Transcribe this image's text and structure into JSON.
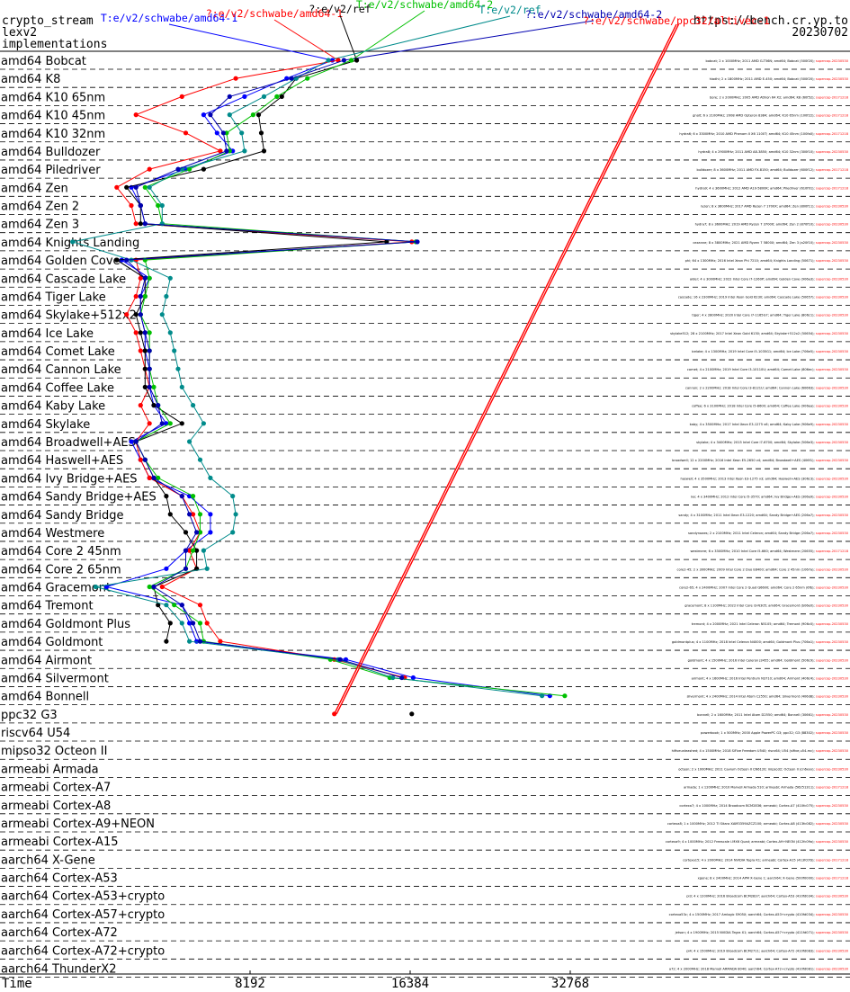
{
  "header": {
    "line1": "crypto_stream",
    "line2": "lexv2",
    "line3": "implementations",
    "url": "https://bench.cr.yp.to",
    "date": "20230702"
  },
  "colors": {
    "schwabe_amd64_1": "#0000ff",
    "v2_schwabe_amd64_1": "#ff0000",
    "ref": "#000000",
    "schwabe_amd64_2": "#00c000",
    "e_ref": "#008b8b",
    "e_schwabe_amd64_2": "#0000b0",
    "ppc_altivec": "#ff0000",
    "note": "#ff0000"
  },
  "chart_data": {
    "type": "line",
    "title": "",
    "xlabel": "Time",
    "ylabel": "",
    "x_scale": "log2",
    "x_ticks": [
      8192,
      16384,
      32768
    ],
    "xlim": [
      3800,
      60000
    ],
    "categories": [
      "amd64 Bobcat",
      "amd64 K8",
      "amd64 K10 65nm",
      "amd64 K10 45nm",
      "amd64 K10 32nm",
      "amd64 Bulldozer",
      "amd64 Piledriver",
      "amd64 Zen",
      "amd64 Zen 2",
      "amd64 Zen 3",
      "amd64 Knights Landing",
      "amd64 Golden Cove",
      "amd64 Cascade Lake",
      "amd64 Tiger Lake",
      "amd64 Skylake+512x2",
      "amd64 Ice Lake",
      "amd64 Comet Lake",
      "amd64 Cannon Lake",
      "amd64 Coffee Lake",
      "amd64 Kaby Lake",
      "amd64 Skylake",
      "amd64 Broadwell+AES",
      "amd64 Haswell+AES",
      "amd64 Ivy Bridge+AES",
      "amd64 Sandy Bridge+AES",
      "amd64 Sandy Bridge",
      "amd64 Westmere",
      "amd64 Core 2 45nm",
      "amd64 Core 2 65nm",
      "amd64 Gracemont",
      "amd64 Tremont",
      "amd64 Goldmont Plus",
      "amd64 Goldmont",
      "amd64 Airmont",
      "amd64 Silvermont",
      "amd64 Bonnell",
      "ppc32 G3",
      "riscv64 U54",
      "mipso32 Octeon II",
      "armeabi Armada",
      "armeabi Cortex-A7",
      "armeabi Cortex-A8",
      "armeabi Cortex-A9+NEON",
      "armeabi Cortex-A15",
      "aarch64 X-Gene",
      "aarch64 Cortex-A53",
      "aarch64 Cortex-A53+crypto",
      "aarch64 Cortex-A57+crypto",
      "aarch64 Cortex-A72",
      "aarch64 Cortex-A72+crypto",
      "aarch64 ThunderX2"
    ],
    "machines": [
      "bobcat; 2 x 1000MHz; 2011 AMD G-T56N; amd64; Bobcat (500f20); supercop-20230530",
      "hiadhi; 2 x 1800MHz; 2011 AMD E-450; amd64; Bobcat (500f20); supercop-20230530",
      "bore; 2 x 2000MHz; 2005 AMD Athlon 64 X2; amd64; K8 (60f52); supercop-20171218",
      "gnolt; 6 x 2100MHz; 2008 AMD Opteron 8384; amd64; K10 65nm (100f22); supercop-20171218",
      "hydra6; 6 x 3300MHz; 2010 AMD Phenom II X6 1100T; amd64; K10 45nm (100fa0); supercop-20171218",
      "hydra8; 4 x 2900MHz; 2011 AMD A8-3850; amd64; K10 32nm (300f10); supercop-20230530",
      "bulldozer; 8 x 3600MHz; 2011 AMD FX-8150; amd64; Bulldozer (600f12); supercop-20171218",
      "hydra9; 4 x 3600MHz; 2012 AMD A10-5800K; amd64; Piledriver (610f01); supercop-20171218",
      "ryzen; 8 x 3600MHz; 2017 AMD Ryzen 7 1700X; amd64; Zen (800f11); supercop-20230530",
      "hydra7; 8 x 3600MHz; 2019 AMD Ryzen 7 3700X; amd64; Zen 2 (870f10); supercop-20230530",
      "cezanne; 8 x 3800MHz; 2021 AMD Ryzen 7 5800X; amd64; Zen 3 (a20f10); supercop-20230530",
      "phi; 64 x 1300MHz; 2016 Intel Xeon Phi 7210; amd64; Knights Landing (50671); supercop-20230530",
      "alder; 4 x 3000MHz; 2022 Intel Core i7-1260P; amd64; Golden Cove (906a3); supercop-20230530",
      "cascade; 16 x 2300MHz; 2019 Intel Xeon Gold 6230; amd64; Cascade Lake (50657); supercop-20230530",
      "tiger; 4 x 2800MHz; 2020 Intel Core i7-1165G7; amd64; Tiger Lake (806c1); supercop-20230530",
      "skylake512; 28 x 2100MHz; 2017 Intel Xeon Gold 6130; amd64; Skylake+512x2 (50654); supercop-20230530",
      "icelake; 4 x 1300MHz; 2019 Intel Core i5-1035G1; amd64; Ice Lake (706e5); supercop-20230530",
      "comet; 4 x 2100MHz; 2019 Intel Core i3-10110U; amd64; Comet Lake (806ec); supercop-20230530",
      "cannon; 2 x 2200MHz; 2018 Intel Core i3-8121U; amd64; Cannon Lake (60663); supercop-20230530",
      "coffee; 6 x 3100MHz; 2018 Intel Core i5-8600; amd64; Coffee Lake (906ea); supercop-20230530",
      "kaby; 4 x 3500MHz; 2017 Intel Xeon E3-1275 v6; amd64; Kaby Lake (906e9); supercop-20230530",
      "skylake; 4 x 3400MHz; 2015 Intel Core i7-6700; amd64; Skylake (506e3); supercop-20230530",
      "broadwell; 12 x 2200MHz; 2016 Intel Xeon E5-2650 v4; amd64; Broadwell+AES (406f1); supercop-20230530",
      "haswell; 4 x 3500MHz; 2013 Intel Xeon E3-1275 v3; amd64; Haswell+AES (306c3); supercop-20230530",
      "ivy; 4 x 3400MHz; 2012 Intel Core i5-3570; amd64; Ivy Bridge+AES (306a9); supercop-20230530",
      "sandy; 4 x 3100MHz; 2011 Intel Xeon E3-1220; amd64; Sandy Bridge+AES (206a7); supercop-20230530",
      "sandynoaes; 2 x 2100MHz; 2011 Intel Celeron; amd64; Sandy Bridge (206a7); supercop-20230530",
      "westmere; 6 x 3300MHz; 2010 Intel Core i5-660; amd64; Westmere (20655); supercop-20171218",
      "core2-45; 2 x 3000MHz; 2009 Intel Core 2 Duo E8400; amd64; Core 2 45nm (1067a); supercop-20230530",
      "core2-65; 4 x 2400MHz; 2007 Intel Core 2 Quad Q6600; amd64; Core 2 65nm (6fb); supercop-20230530",
      "gracemont; 8 x 1100MHz; 2022 Intel Core i3-N305; amd64; Gracemont (b06e0); supercop-20230530",
      "tremont; 4 x 2000MHz; 2021 Intel Celeron N5105; amd64; Tremont (906c0); supercop-20230530",
      "goldmontplus; 4 x 1100MHz; 2018 Intel Celeron N4000; amd64; Goldmont Plus (706a1); supercop-20230530",
      "goldmont; 4 x 1500MHz; 2016 Intel Celeron J3455; amd64; Goldmont (506c9); supercop-20230530",
      "airmont; 4 x 1600MHz; 2016 Intel Pentium N3710; amd64; Airmont (406c4); supercop-20230530",
      "silvermont; 4 x 2400MHz; 2014 Intel Atom C2550; amd64; Silvermont (406d8); supercop-20230530",
      "bonnell; 2 x 1600MHz; 2011 Intel Atom D2550; amd64; Bonnell (30661); supercop-20230530",
      "powerbook; 1 x 500MHz; 2000 Apple PowerPC G3; ppc32; G3 (88302); supercop-20230530",
      "hifiveunleashed; 4 x 1500MHz; 2018 SiFive Freedom U540; riscv64; U54 (sifive,u54-mc); supercop-20230530",
      "octeon; 2 x 1000MHz; 2011 Cavium Octeon II CN6120; mipso32; Octeon II (cn6xxx); supercop-20230530",
      "armada; 1 x 1200MHz; 2010 Marvell Armada 510; armeabi; Armada (56251311); supercop-20171218",
      "cortexa7; 4 x 1000MHz; 2014 Broadcom BCM2836; armeabi; Cortex-A7 (410fc075); supercop-20230530",
      "cortexa8; 1 x 1000MHz; 2012 TI Sitara XAM3359AZCZ100; armeabi; Cortex-A8 (413fc082); supercop-20230530",
      "cortexa9; 4 x 1000MHz; 2012 Freescale i.MX6 Quad; armeabi; Cortex-A9+NEON (412fc09a); supercop-20230530",
      "cortexa15; 4 x 2000MHz; 2014 NVIDIA Tegra K1; armeabi; Cortex-A15 (413fc0f3); supercop-20171218",
      "xgene; 8 x 2400MHz; 2014 APM X-Gene 1; aarch64; X-Gene (500f0000); supercop-20171218",
      "pi3; 4 x 1200MHz; 2016 Broadcom BCM2837; aarch64; Cortex-A53 (410fd034); supercop-20230530",
      "cortexa53c; 4 x 1500MHz; 2017 Amlogic S905X; aarch64; Cortex-A53+crypto (410fd034); supercop-20230530",
      "jetson; 4 x 1900MHz; 2015 NVIDIA Tegra X1; aarch64; Cortex-A57+crypto (411fd071); supercop-20230530",
      "pi4; 4 x 1500MHz; 2019 Broadcom BCM2711; aarch64; Cortex-A72 (410fd083); supercop-20230530",
      "a72; 4 x 2000MHz; 2018 Marvell ARMADA 8040; aarch64; Cortex-A72+crypto (410fd081); supercop-20230530",
      "thunderx2; 64 x 2500MHz; 2018 Cavium ThunderX2 CN9980; aarch64; ThunderX2 (431f0af1); supercop-20230530"
    ],
    "series": [
      {
        "name": "T:e/v2/schwabe/amd64-1",
        "color": "#0000ff",
        "values": [
          11700,
          9600,
          8000,
          6700,
          7100,
          7600,
          6200,
          4900,
          5100,
          5200,
          16800,
          4700,
          5300,
          5100,
          5100,
          5200,
          5200,
          5300,
          5300,
          5400,
          5700,
          4900,
          5100,
          5300,
          6300,
          6900,
          6900,
          6200,
          5700,
          4400,
          6100,
          6300,
          6500,
          12400,
          16600,
          30000,
          null,
          null,
          null,
          null,
          null,
          null,
          null,
          null,
          null,
          null,
          null,
          null,
          null,
          null,
          null
        ]
      },
      {
        "name": "?:e/v2/schwabe/amd64-1",
        "color": "#ff0000",
        "values": [
          12000,
          7700,
          6100,
          5000,
          6200,
          7200,
          5300,
          4600,
          4900,
          5000,
          16500,
          5000,
          5100,
          5000,
          4800,
          5000,
          5100,
          5200,
          5300,
          5100,
          5300,
          5000,
          5100,
          5300,
          6100,
          6400,
          6600,
          6300,
          6500,
          5600,
          6600,
          6800,
          7200,
          11800,
          16000,
          null,
          null,
          null,
          null,
          null,
          null,
          null,
          null,
          null,
          null,
          null,
          null,
          null,
          null,
          null,
          null
        ]
      },
      {
        "name": "?:e/v2/ref",
        "color": "#000000",
        "values": [
          13000,
          10000,
          9400,
          8500,
          8600,
          8700,
          6700,
          4800,
          5100,
          5100,
          14800,
          4600,
          5200,
          5200,
          5000,
          5100,
          5200,
          5200,
          5200,
          5400,
          6100,
          5000,
          5200,
          5400,
          5700,
          5800,
          6200,
          6500,
          6500,
          5400,
          5500,
          5800,
          5700,
          null,
          null,
          null,
          16500,
          null,
          null,
          null,
          null,
          null,
          null,
          null,
          null,
          null,
          null,
          null,
          null,
          null,
          null
        ]
      },
      {
        "name": "T:e/v2/schwabe/amd64-2",
        "color": "#00c000",
        "values": [
          12700,
          10500,
          9200,
          8300,
          7400,
          7500,
          6300,
          5200,
          5500,
          5600,
          16800,
          5200,
          5300,
          5200,
          5100,
          5300,
          5300,
          5300,
          5400,
          5500,
          5800,
          5000,
          5200,
          5500,
          6400,
          6600,
          6600,
          6400,
          6200,
          5300,
          5900,
          6600,
          6700,
          11600,
          15000,
          32000,
          null,
          null,
          null,
          null,
          null,
          null,
          null,
          null,
          null,
          null,
          null,
          null,
          null,
          null,
          null
        ]
      },
      {
        "name": "T:e/v2/ref",
        "color": "#008b8b",
        "values": [
          11500,
          10000,
          8700,
          7500,
          7900,
          8000,
          6100,
          5300,
          5600,
          5600,
          3800,
          4900,
          5800,
          5700,
          5600,
          5800,
          5900,
          6000,
          6100,
          6400,
          6700,
          6300,
          6600,
          6900,
          7600,
          7700,
          7600,
          6700,
          6800,
          4200,
          5700,
          6100,
          6300,
          12000,
          15200,
          29000,
          null,
          null,
          null,
          null,
          null,
          null,
          null,
          null,
          null,
          null,
          null,
          null,
          null,
          null,
          null
        ]
      },
      {
        "name": "?:e/v2/schwabe/amd64-2",
        "color": "#0000b0",
        "values": [
          12300,
          9800,
          7500,
          6900,
          7300,
          7400,
          6000,
          5000,
          5100,
          5200,
          16900,
          4800,
          5200,
          5100,
          5100,
          5200,
          5300,
          5300,
          5300,
          5500,
          5600,
          5000,
          5200,
          5400,
          6100,
          6300,
          6500,
          6200,
          6200,
          5400,
          6100,
          6400,
          6600,
          12100,
          15800,
          null,
          null,
          null,
          null,
          null,
          null,
          null,
          null,
          null,
          null,
          null,
          null,
          null,
          null,
          null,
          null
        ]
      },
      {
        "name": "?:e/v2/schwabe/ppc32/altivec-1",
        "color": "#ff0000",
        "values": [
          null,
          null,
          null,
          null,
          null,
          null,
          null,
          null,
          null,
          null,
          null,
          null,
          null,
          null,
          null,
          null,
          null,
          null,
          null,
          null,
          null,
          null,
          null,
          null,
          null,
          null,
          null,
          null,
          null,
          null,
          null,
          null,
          null,
          null,
          null,
          null,
          11800,
          null,
          null,
          null,
          null,
          null,
          null,
          null,
          null,
          null,
          null,
          null,
          null,
          null,
          null
        ]
      }
    ],
    "overflow_line": {
      "series": "?:e/v2/schwabe/ppc32/altivec-1",
      "from_category": "ppc32 G3",
      "from_value": 11800,
      "to": "offscale-top"
    },
    "grid": "dashed-horizontal",
    "legend": "top"
  }
}
